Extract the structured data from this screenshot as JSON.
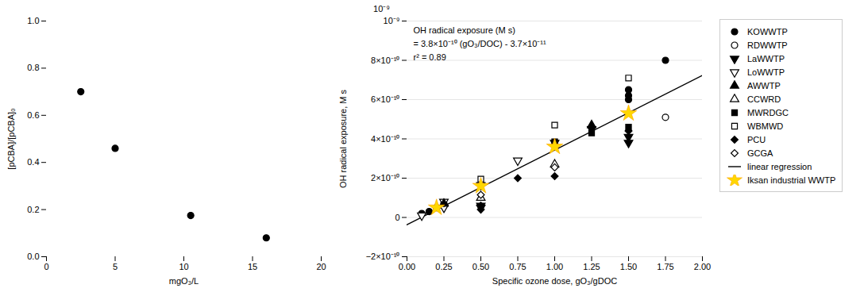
{
  "chart_data": [
    {
      "type": "scatter",
      "xlabel": "mgO₃/L",
      "ylabel": "[pCBA]/[pCBA]₀",
      "x": [
        2.5,
        5.0,
        10.5,
        16.0
      ],
      "values": [
        0.7,
        0.46,
        0.175,
        0.08
      ],
      "color": "black",
      "marker": "circle",
      "xlim": [
        0,
        20
      ],
      "ylim": [
        0,
        1.0
      ],
      "xticks": [
        0,
        5,
        10,
        15,
        20
      ],
      "yticks": [
        {
          "value": 0,
          "label": "0.0"
        },
        0.2,
        0.4,
        0.6,
        0.8,
        {
          "value": 1,
          "label": "1.0"
        }
      ]
    },
    {
      "type": "scatter",
      "xlabel": "Specific ozone dose, gO₃/gDOC",
      "ylabel": "OH radical exposure, M s",
      "xlim": [
        0.0,
        2.0
      ],
      "ylim": [
        -2e-10,
        1e-09
      ],
      "xticks": [
        {
          "value": 0,
          "label": "0.00"
        },
        0.25,
        {
          "value": 0.5,
          "label": "0.50"
        },
        0.75,
        {
          "value": 1,
          "label": "1.00"
        },
        1.25,
        {
          "value": 1.5,
          "label": "1.50"
        },
        1.75,
        {
          "value": 2,
          "label": "2.00"
        }
      ],
      "yticks": [
        {
          "value": -2e-10,
          "label": "−2×10⁻¹⁰"
        },
        0,
        {
          "value": 2e-10,
          "label": "2×10⁻¹⁰"
        },
        {
          "value": 4e-10,
          "label": "4×10⁻¹⁰"
        },
        {
          "value": 6e-10,
          "label": "6×10⁻¹⁰"
        },
        {
          "value": 8e-10,
          "label": "8×10⁻¹⁰"
        },
        {
          "value": 1e-09,
          "label": "10⁻⁹"
        }
      ],
      "grid": true,
      "legend": "right",
      "annotations": [
        "10⁻⁹",
        "OH radical exposure (M s)",
        "= 3.8×10⁻¹⁰ (gO₃/DOC) - 3.7×10⁻¹¹",
        "r² = 0.89"
      ],
      "series": [
        {
          "name": "KOWWTP",
          "color": "black",
          "marker": "circle",
          "x": [
            0.1,
            0.15,
            0.2,
            0.25,
            1.5,
            1.5,
            1.5,
            1.75
          ],
          "values": [
            2e-11,
            3e-11,
            5e-11,
            7e-11,
            6e-10,
            6.2e-10,
            6.5e-10,
            8e-10
          ]
        },
        {
          "name": "RDWWTP",
          "color": "black",
          "marker": "circle-open",
          "x": [
            1.75
          ],
          "values": [
            5.1e-10
          ]
        },
        {
          "name": "LaWWTP",
          "color": "black",
          "marker": "triangle-down",
          "x": [
            0.5,
            0.5,
            1.0,
            1.25,
            1.5,
            1.5
          ],
          "values": [
            5e-11,
            6e-11,
            3.8e-10,
            4.5e-10,
            4.1e-10,
            3.8e-10
          ]
        },
        {
          "name": "LoWWTP",
          "color": "black",
          "marker": "triangle-down-open",
          "x": [
            0.1,
            0.25,
            0.25,
            0.5,
            0.75
          ],
          "values": [
            1e-11,
            5e-11,
            8e-11,
            1.65e-10,
            2.9e-10
          ]
        },
        {
          "name": "AWWTP",
          "color": "black",
          "marker": "triangle",
          "x": [
            0.25,
            1.25
          ],
          "values": [
            7e-11,
            4.7e-10
          ]
        },
        {
          "name": "CCWRD",
          "color": "black",
          "marker": "triangle-open",
          "x": [
            0.5,
            1.0
          ],
          "values": [
            1e-10,
            2.7e-10
          ]
        },
        {
          "name": "MWRDGC",
          "color": "black",
          "marker": "square",
          "x": [
            1.0,
            1.25,
            1.5
          ],
          "values": [
            3.85e-10,
            4.3e-10,
            4.6e-10
          ]
        },
        {
          "name": "WBMWD",
          "color": "black",
          "marker": "square-open",
          "x": [
            0.5,
            1.0,
            1.5
          ],
          "values": [
            1.95e-10,
            4.7e-10,
            7.1e-10
          ]
        },
        {
          "name": "PCU",
          "color": "black",
          "marker": "diamond",
          "x": [
            0.5,
            0.5,
            0.75,
            1.0,
            1.5
          ],
          "values": [
            4e-11,
            6e-11,
            2e-10,
            2.1e-10,
            4.4e-10
          ]
        },
        {
          "name": "GCGA",
          "color": "black",
          "marker": "diamond-open",
          "x": [
            0.5,
            1.0
          ],
          "values": [
            1.15e-10,
            2.55e-10
          ]
        },
        {
          "name": "linear regression",
          "type": "line",
          "color": "black",
          "line_style": "solid",
          "x": [
            0.0,
            2.0
          ],
          "values": [
            -3.7e-11,
            7.23e-10
          ]
        },
        {
          "name": "Iksan industrial WWTP",
          "color": "gold",
          "marker": "star",
          "x": [
            0.2,
            0.5,
            1.0,
            1.5
          ],
          "values": [
            5e-11,
            1.6e-10,
            3.6e-10,
            5.3e-10
          ]
        }
      ]
    }
  ]
}
